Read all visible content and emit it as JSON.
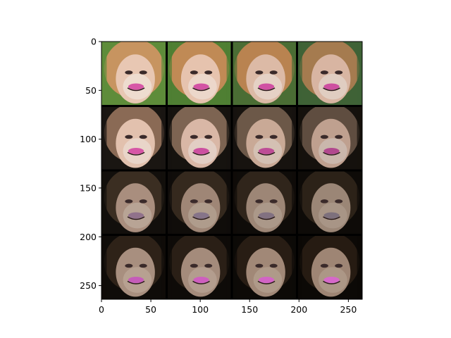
{
  "figure": {
    "background": "#ffffff",
    "image": {
      "description_role": "grid of generated face images",
      "rows": 4,
      "cols": 4,
      "extent": {
        "x": [
          0,
          264
        ],
        "y": [
          0,
          264
        ]
      },
      "tiles": [
        {
          "row": 0,
          "col": 0,
          "skin": "#e8c7b3",
          "hair": "#c79460",
          "bg": "#5e8c3a",
          "accent": "#d23fa0",
          "shade": "#f3ece6"
        },
        {
          "row": 0,
          "col": 1,
          "skin": "#e6c3ae",
          "hair": "#c08a55",
          "bg": "#4f7f33",
          "accent": "#cf3c9e",
          "shade": "#f0e8e2"
        },
        {
          "row": 0,
          "col": 2,
          "skin": "#dcbaa6",
          "hair": "#b98350",
          "bg": "#4a6d34",
          "accent": "#cc3b9c",
          "shade": "#ece4de"
        },
        {
          "row": 0,
          "col": 3,
          "skin": "#d8b5a2",
          "hair": "#a57b4f",
          "bg": "#3f6236",
          "accent": "#c93a9a",
          "shade": "#e8e0da"
        },
        {
          "row": 1,
          "col": 0,
          "skin": "#e2c1ae",
          "hair": "#8a6a55",
          "bg": "#1a1612",
          "accent": "#d23fa0",
          "shade": "#eee6e0"
        },
        {
          "row": 1,
          "col": 1,
          "skin": "#d9b7a6",
          "hair": "#7d6452",
          "bg": "#16130f",
          "accent": "#c83a9a",
          "shade": "#e9e1dc"
        },
        {
          "row": 1,
          "col": 2,
          "skin": "#c9a996",
          "hair": "#6c5848",
          "bg": "#17130f",
          "accent": "#b83890",
          "shade": "#dcd3cc"
        },
        {
          "row": 1,
          "col": 3,
          "skin": "#bfa08f",
          "hair": "#5f4d40",
          "bg": "#15110d",
          "accent": "#ad3588",
          "shade": "#d3cbc4"
        },
        {
          "row": 2,
          "col": 0,
          "skin": "#a98e7e",
          "hair": "#3b2e22",
          "bg": "#120f0c",
          "accent": "#8a6a8a",
          "shade": "#c5b6a8"
        },
        {
          "row": 2,
          "col": 1,
          "skin": "#9f8676",
          "hair": "#35291e",
          "bg": "#100d0a",
          "accent": "#7f6d88",
          "shade": "#bcae9f"
        },
        {
          "row": 2,
          "col": 2,
          "skin": "#9d8676",
          "hair": "#30251b",
          "bg": "#0f0c09",
          "accent": "#7a6a80",
          "shade": "#b7a899"
        },
        {
          "row": 2,
          "col": 3,
          "skin": "#9b8676",
          "hair": "#2c2218",
          "bg": "#0e0b08",
          "accent": "#766a7a",
          "shade": "#b3a394"
        },
        {
          "row": 3,
          "col": 0,
          "skin": "#a88f7f",
          "hair": "#2e2218",
          "bg": "#0f0c09",
          "accent": "#c850c0",
          "shade": "#c2b0a1"
        },
        {
          "row": 3,
          "col": 1,
          "skin": "#a48b7b",
          "hair": "#2a1f16",
          "bg": "#0e0b08",
          "accent": "#d255c8",
          "shade": "#bfad9e"
        },
        {
          "row": 3,
          "col": 2,
          "skin": "#a18877",
          "hair": "#281d14",
          "bg": "#0d0a07",
          "accent": "#d85bd0",
          "shade": "#bba999"
        },
        {
          "row": 3,
          "col": 3,
          "skin": "#9e8574",
          "hair": "#261b12",
          "bg": "#0c0906",
          "accent": "#dd60d6",
          "shade": "#b8a695"
        }
      ]
    },
    "x_axis": {
      "ticks": [
        "0",
        "50",
        "100",
        "150",
        "200",
        "250"
      ],
      "tick_values": [
        0,
        50,
        100,
        150,
        200,
        250
      ]
    },
    "y_axis": {
      "ticks": [
        "0",
        "50",
        "100",
        "150",
        "200",
        "250"
      ],
      "tick_values": [
        0,
        50,
        100,
        150,
        200,
        250
      ]
    }
  }
}
